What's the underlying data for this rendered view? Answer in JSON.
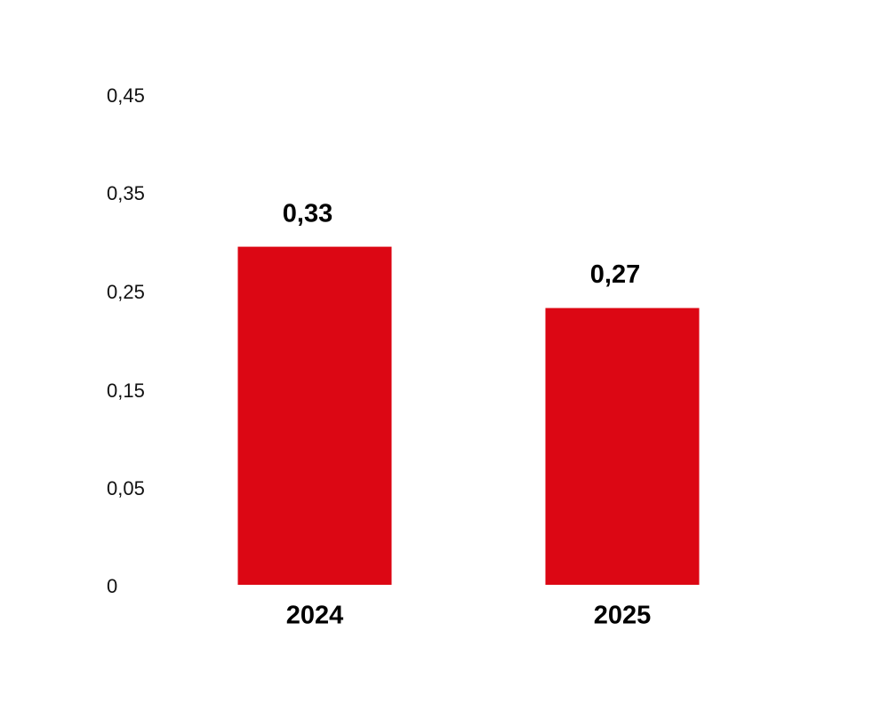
{
  "chart_data": {
    "type": "bar",
    "categories": [
      "2024",
      "2025"
    ],
    "values": [
      0.33,
      0.27
    ],
    "data_labels": [
      "0,33",
      "0,27"
    ],
    "y_ticks": [
      "0",
      "0,05",
      "0,15",
      "0,25",
      "0,35",
      "0,45"
    ],
    "bar_color": "#DC0714",
    "grid": false,
    "legend": "none",
    "title": "",
    "xlabel": "",
    "ylabel": ""
  }
}
